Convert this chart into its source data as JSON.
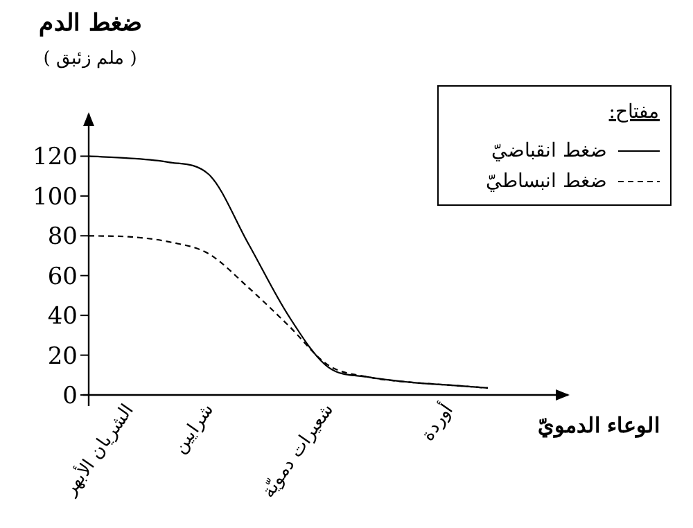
{
  "chart_data": {
    "type": "line",
    "ylabel": "ضغط الدم\n( ملم زئبق )",
    "xlabel": "الوعاء الدمويّ",
    "legend_title": "مفتاح:",
    "legend": "top right",
    "grid": false,
    "marker": "none",
    "categories": [
      null,
      "الشريان الأبهر",
      null,
      "شرايين",
      null,
      null,
      "شعيرات دمويّة",
      null,
      null,
      "أوردة",
      null
    ],
    "ylim": [
      0,
      140
    ],
    "yticks": [
      0,
      20,
      40,
      60,
      80,
      100,
      120
    ],
    "series": [
      {
        "name": "ضغط انقباضيّ",
        "color": "#000000",
        "line_style": "solid",
        "values": [
          120,
          119,
          117,
          111,
          76,
          40,
          14,
          9,
          6.5,
          5,
          3.5
        ]
      },
      {
        "name": "ضغط انبساطيّ",
        "color": "#000000",
        "line_style": "dashed",
        "values": [
          80,
          79.5,
          77,
          71,
          54,
          35,
          15,
          9,
          6.5,
          5,
          3.5
        ]
      }
    ]
  }
}
